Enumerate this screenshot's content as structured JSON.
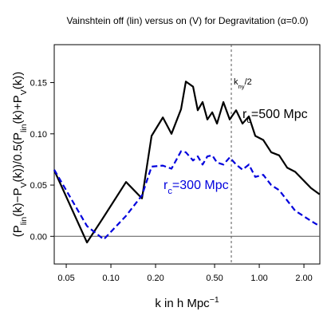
{
  "chart_data": {
    "type": "line",
    "title": "Vainshtein off (lin) versus on (V) for Degravitation (α=0.0)",
    "x_label_parts": [
      {
        "text": "k in h Mpc"
      },
      {
        "text": "−1",
        "sup": true
      }
    ],
    "y_label_parts": [
      {
        "text": "(P"
      },
      {
        "text": "lin",
        "sub": true
      },
      {
        "text": "(k)−P"
      },
      {
        "text": "V",
        "sub": true
      },
      {
        "text": "(k))/0.5(P"
      },
      {
        "text": "lin",
        "sub": true
      },
      {
        "text": "(k)+P"
      },
      {
        "text": "V",
        "sub": true
      },
      {
        "text": "(k))"
      }
    ],
    "x_log": true,
    "x": [
      0.0415,
      0.069,
      0.0895,
      0.1265,
      0.162,
      0.188,
      0.224,
      0.256,
      0.297,
      0.32,
      0.358,
      0.385,
      0.415,
      0.447,
      0.482,
      0.519,
      0.573,
      0.632,
      0.698,
      0.771,
      0.851,
      0.94,
      1.064,
      1.204,
      1.362,
      1.542,
      1.745,
      1.975,
      2.235,
      2.55
    ],
    "series": [
      {
        "label_parts": [
          {
            "text": "r"
          },
          {
            "text": "c",
            "sub": true
          },
          {
            "text": "=500 Mpc"
          }
        ],
        "color": "#000000",
        "dashed": false,
        "values": [
          0.0645,
          -0.006,
          0.019,
          0.053,
          0.037,
          0.098,
          0.116,
          0.1,
          0.124,
          0.151,
          0.146,
          0.123,
          0.131,
          0.114,
          0.121,
          0.11,
          0.131,
          0.114,
          0.123,
          0.11,
          0.117,
          0.098,
          0.094,
          0.082,
          0.079,
          0.067,
          0.063,
          0.055,
          0.047,
          0.041
        ]
      },
      {
        "label_parts": [
          {
            "text": "r"
          },
          {
            "text": "c",
            "sub": true
          },
          {
            "text": "=300 Mpc"
          }
        ],
        "color": "#0000dd",
        "dashed": true,
        "values": [
          0.065,
          0.01,
          -0.003,
          0.02,
          0.04,
          0.068,
          0.069,
          0.066,
          0.083,
          0.082,
          0.074,
          0.078,
          0.07,
          0.078,
          0.079,
          0.072,
          0.07,
          0.077,
          0.07,
          0.065,
          0.07,
          0.058,
          0.06,
          0.05,
          0.045,
          0.035,
          0.025,
          0.02,
          0.015,
          0.01
        ]
      }
    ],
    "xlim": [
      0.0415,
      2.56
    ],
    "ylim": [
      -0.027,
      0.187
    ],
    "xticks": [
      {
        "value": 0.05,
        "label": "0.05"
      },
      {
        "value": 0.1,
        "label": "0.10"
      },
      {
        "value": 0.2,
        "label": "0.20"
      },
      {
        "value": 0.5,
        "label": "0.50"
      },
      {
        "value": 1,
        "label": "1.00"
      },
      {
        "value": 2,
        "label": "2.00"
      }
    ],
    "yticks": [
      {
        "value": 0,
        "label": "0.00"
      },
      {
        "value": 0.05,
        "label": "0.05"
      },
      {
        "value": 0.1,
        "label": "0.10"
      },
      {
        "value": 0.15,
        "label": "0.15"
      }
    ],
    "hline": 0,
    "vline": {
      "x": 0.648,
      "label_parts": [
        {
          "text": "k"
        },
        {
          "text": "ny",
          "sub": true
        },
        {
          "text": "/2"
        }
      ]
    }
  }
}
